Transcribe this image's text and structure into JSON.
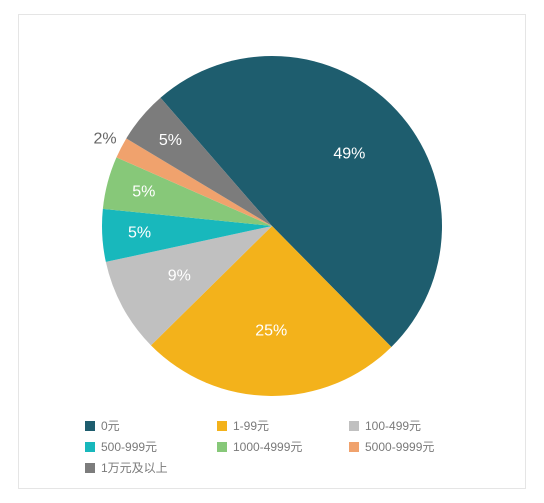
{
  "chart": {
    "type": "pie",
    "background_color": "#ffffff",
    "border_color": "#e5e5e5",
    "label_fontsize": 16,
    "label_color_inside": "#ffffff",
    "label_color_outside": "#666666",
    "legend_fontsize": 12,
    "legend_text_color": "#7a7a7a",
    "radius": 170,
    "start_angle_deg": -41,
    "slices": [
      {
        "label": "0元",
        "value": 49,
        "display": "49%",
        "color": "#1e5d6e"
      },
      {
        "label": "1-99元",
        "value": 25,
        "display": "25%",
        "color": "#f3b21b"
      },
      {
        "label": "100-499元",
        "value": 9,
        "display": "9%",
        "color": "#c0c0c0"
      },
      {
        "label": "500-999元",
        "value": 5,
        "display": "5%",
        "color": "#18b8bc"
      },
      {
        "label": "1000-4999元",
        "value": 5,
        "display": "5%",
        "color": "#87c879"
      },
      {
        "label": "5000-9999元",
        "value": 2,
        "display": "2%",
        "color": "#f0a26d"
      },
      {
        "label": "1万元及以上",
        "value": 5,
        "display": "5%",
        "color": "#7c7c7c"
      }
    ]
  }
}
